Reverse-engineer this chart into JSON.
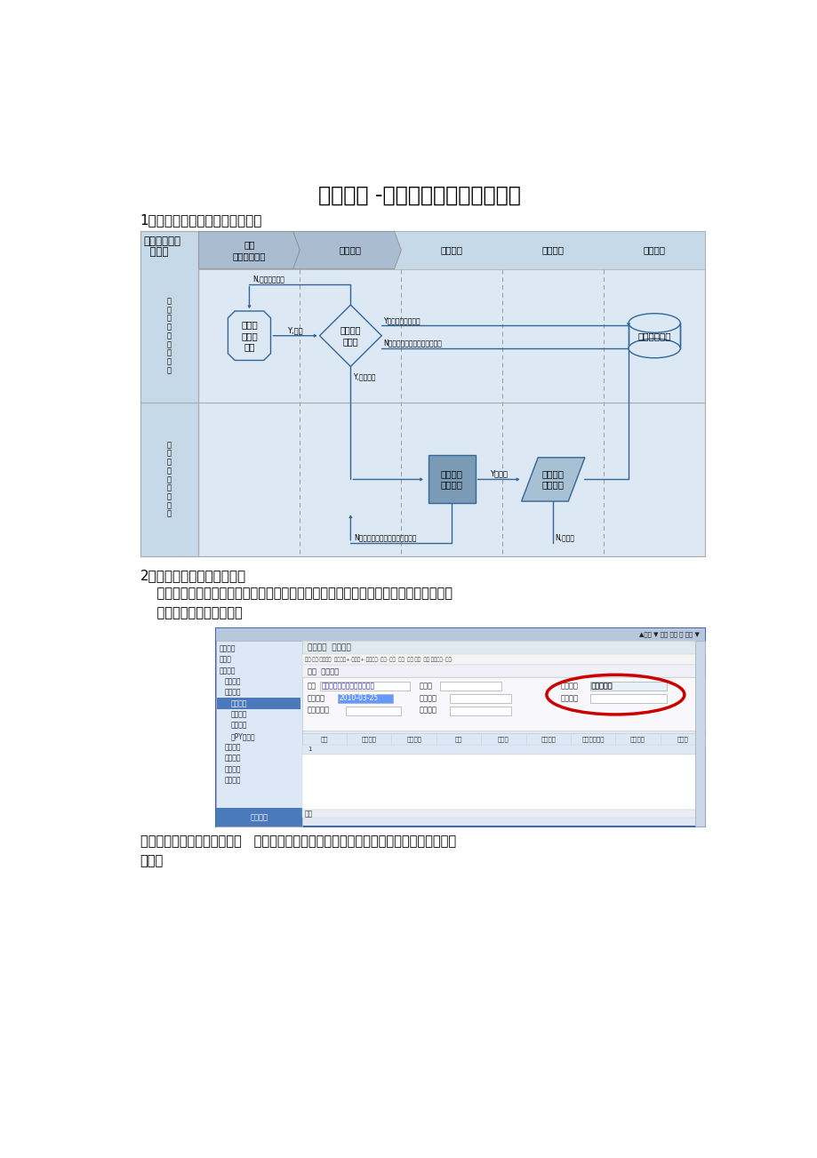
{
  "title": "财务会计 -现金管理新流程操作手册",
  "section1_title": "1、现金管理单据操作流程流程图",
  "section2_title": "2、出纳单据管理模板的调整",
  "section2_text1": "    【财务会计】－【现金管理】－【日常业务】－【单据管理】中，对付款结算单和收款",
  "section2_text2": "    结算单中模块进行调整，",
  "section3_text1": "在新增单据中参加必填字段：   【科目】，该字段主要是填写该笔现金业务对应会计入账的",
  "section3_text2": "科目。",
  "flowchart_header_line1": "现金管理单据",
  "flowchart_header_line2": "  新流程",
  "col_labels": [
    "制单\n（单据管理）",
    "审核单据",
    "结算单据",
    "银行对账",
    "凭证生成"
  ],
  "row1_label": "员\n单\n制\n计\n会\n（\n会\n司\n公",
  "row2_label": "员\n算\n结\n纳\n出\n（\n纳\n司\n公",
  "bg_color": "#ffffff",
  "fc_bg": "#dce8f3",
  "fc_header_bg": "#c5d9e8",
  "box_fill": "#dce8f3",
  "box_edge": "#6699bb",
  "diamond_fill": "#dce8f3",
  "dark_box_fill": "#7a9ab5",
  "para_fill": "#a8c0d4",
  "arrow_color": "#336699",
  "text_color": "#000000",
  "dashed_color": "#999999",
  "red_circle_color": "#cc0000",
  "screenshot_border": "#4466aa"
}
